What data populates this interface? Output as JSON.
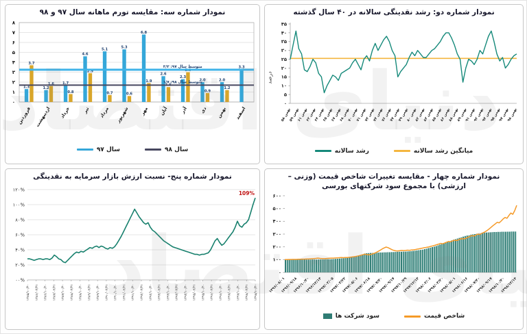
{
  "page": {
    "watermark": "دنیای اقتصاد"
  },
  "chart_data": [
    {
      "id": "inflation",
      "type": "bar",
      "title": "نمودار شماره سه: مقایسه تورم ماهانه سال ۹۷ و ۹۸",
      "categories": [
        "فروردین",
        "اردیبهشت",
        "خرداد",
        "تیر",
        "مرداد",
        "شهریور",
        "مهر",
        "آبان",
        "آذر",
        "دی",
        "بهمن",
        "اسفند"
      ],
      "series": [
        {
          "name": "سال ۹۷",
          "color": "#35a7d9",
          "values": [
            1.3,
            1.2,
            1.7,
            4.6,
            5.1,
            5.3,
            6.8,
            2.6,
            2.3,
            2.0,
            2.0,
            3.3
          ],
          "labels": [
            "1.3",
            "1.2",
            "1.7",
            "4.6",
            "5.1",
            "5.3",
            "6.8",
            "2.6",
            "2.3",
            "2.0",
            "2.0",
            "3.3"
          ]
        },
        {
          "name": "سال ۹۸",
          "color": "#d9a62a",
          "values": [
            3.7,
            1.6,
            0.8,
            2.9,
            0.7,
            0.6,
            1.9,
            1.5,
            3.0,
            0.9,
            1.2,
            null
          ],
          "labels": [
            "3.7",
            "1.6",
            "0.8",
            "2.9",
            "0.7",
            "0.6",
            "1.9",
            "1.5",
            "3.0",
            "0.9",
            "1.2",
            null
          ]
        }
      ],
      "avg_lines": [
        {
          "label": "متوسط سال ۹۷: ۳/۳",
          "value": 3.25,
          "color": "#3fb3e8"
        },
        {
          "label": "متوسط سال ۹۸: ۱/۷",
          "value": 1.7,
          "color": "#47475f"
        }
      ],
      "ylim": [
        0,
        8
      ],
      "y_tick_labels": [
        "۰",
        "۱",
        "۲",
        "۳",
        "۴",
        "۵",
        "۶",
        "۷",
        "۸"
      ],
      "legend": [
        {
          "label": "سال ۹۷",
          "color": "#35a7d9",
          "marker": "line"
        },
        {
          "label": "سال ۹۸",
          "color": "#47475f",
          "marker": "line"
        }
      ]
    },
    {
      "id": "liquidity_growth",
      "type": "line",
      "title": "نمودار شماره دو: رشد نقدینگی سالانه در ۴۰ سال گذشته",
      "ylabel": "درصد",
      "color": "#15897a",
      "mean": 25.5,
      "mean_color": "#f4b63f",
      "ylim": [
        0,
        45
      ],
      "y_tick_labels": [
        "۰",
        "۵",
        "۱۰",
        "۱۵",
        "۲۰",
        "۲۵",
        "۳۰",
        "۳۵",
        "۴۰",
        "۴۵"
      ],
      "x_labels": [
        "بهمن ۵۸",
        "بهمن ۵۹",
        "بهمن ۶۱",
        "بهمن ۶۲",
        "بهمن ۶۴",
        "بهمن ۶۵",
        "بهمن ۶۷",
        "بهمن ۶۸",
        "بهمن ۷۰",
        "بهمن ۷۱",
        "بهمن ۷۳",
        "بهمن ۷۴",
        "بهمن ۷۶",
        "بهمن ۷۷",
        "بهمن ۷۹",
        "بهمن ۸۰",
        "بهمن ۸۲",
        "بهمن ۸۳",
        "بهمن ۸۵",
        "بهمن ۸۶",
        "بهمن ۸۸",
        "بهمن ۸۹",
        "بهمن ۹۱",
        "بهمن ۹۲",
        "بهمن ۹۴",
        "بهمن ۹۵",
        "بهمن ۹۷",
        "بهمن ۹۸"
      ],
      "values": [
        25,
        33,
        41,
        31,
        28,
        19,
        18,
        21,
        25,
        23,
        17,
        15,
        6,
        10,
        13,
        16,
        15,
        13,
        17,
        18,
        19,
        20,
        23,
        25,
        22,
        19,
        25,
        27,
        24,
        30,
        34,
        30,
        33,
        36,
        38,
        35,
        30,
        27,
        15,
        18,
        20,
        22,
        26,
        29,
        27,
        30,
        28,
        26,
        26,
        28,
        30,
        31,
        33,
        35,
        38,
        40,
        40,
        37,
        33,
        28,
        25,
        12,
        20,
        25,
        24,
        22,
        25,
        30,
        28,
        33,
        38,
        41,
        35,
        28,
        24,
        26,
        20,
        22,
        25,
        27,
        28
      ],
      "legend": [
        {
          "label": "رشد سالانه",
          "color": "#15897a",
          "marker": "line"
        },
        {
          "label": "میانگین رشد سالانه",
          "color": "#f4b63f",
          "marker": "line"
        }
      ]
    },
    {
      "id": "market_value_to_liquidity",
      "type": "line",
      "title": "نمودار شماره پنج- نسبت ارزش بازار سرمایه به نقدینگی",
      "color": "#17806d",
      "ylim": [
        0,
        120
      ],
      "y_tick_labels": [
        "۰۰%",
        "۲۰%",
        "۴۰%",
        "۶۰%",
        "۸۰%",
        "۱۰۰%",
        "۱۲۰%"
      ],
      "end_label": {
        "text": "109%",
        "color": "#c11212"
      },
      "x_labels": [
        "۱۳۸۵/۱۰/۳۰",
        "۱۳۸۶/۰۴/۳۱",
        "۱۳۸۶/۱۰/۳۰",
        "۱۳۸۷/۰۴/۳۱",
        "۱۳۸۷/۱۰/۳۰",
        "۱۳۸۸/۰۴/۳۱",
        "۱۳۸۸/۱۰/۳۰",
        "۱۳۸۹/۰۴/۳۱",
        "۱۳۸۹/۱۰/۳۰",
        "۱۳۹۰/۰۴/۳۱",
        "۱۳۹۰/۱۰/۳۰",
        "۱۳۹۱/۰۴/۳۱",
        "۱۳۹۱/۱۰/۳۰",
        "۱۳۹۲/۰۴/۳۱",
        "۱۳۹۲/۱۰/۳۰",
        "۱۳۹۳/۰۴/۳۱",
        "۱۳۹۳/۱۰/۳۰",
        "۱۳۹۴/۰۴/۳۱",
        "۱۳۹۴/۱۰/۳۰",
        "۱۳۹۵/۰۴/۳۱",
        "۱۳۹۵/۱۰/۳۰",
        "۱۳۹۶/۰۴/۳۱",
        "۱۳۹۶/۱۰/۳۰",
        "۱۳۹۷/۰۴/۳۱",
        "۱۳۹۷/۱۰/۳۰",
        "۱۳۹۸/۰۴/۳۱",
        "۱۳۹۸/۱۰/۳۰"
      ],
      "values": [
        28,
        28,
        27,
        26,
        27,
        28,
        28,
        27,
        28,
        28,
        27,
        29,
        33,
        31,
        28,
        27,
        24,
        23,
        26,
        29,
        32,
        35,
        37,
        36,
        38,
        37,
        39,
        41,
        43,
        42,
        44,
        45,
        43,
        45,
        44,
        42,
        41,
        43,
        42,
        44,
        48,
        53,
        58,
        64,
        70,
        76,
        82,
        88,
        94,
        89,
        84,
        80,
        76,
        74,
        76,
        70,
        66,
        64,
        61,
        58,
        55,
        52,
        50,
        48,
        46,
        44,
        43,
        42,
        41,
        40,
        39,
        38,
        37,
        36,
        35,
        34,
        34,
        33,
        34,
        34,
        35,
        36,
        40,
        46,
        52,
        55,
        50,
        46,
        48,
        52,
        56,
        60,
        64,
        70,
        78,
        72,
        70,
        74,
        76,
        80,
        90,
        100,
        109
      ]
    },
    {
      "id": "price_index_vs_profit",
      "type": "combo",
      "title": "نمودار شماره چهار - مقایسه تغییرات شاخص قیمت (وزنی –ارزشی) با مجموع سود شرکتهای بورسی",
      "ylim": [
        0,
        600
      ],
      "y_tick_labels": [
        "۰",
        "۱۰۰",
        "۲۰۰",
        "۳۰۰",
        "۴۰۰",
        "۵۰۰",
        "۶۰۰"
      ],
      "x_labels": [
        "۱۳۹۶/۰۸/۰۱",
        "۱۳۹۶/۰۹/۱۸",
        "۱۳۹۶/۱۰/۳۰",
        "۱۳۹۶/۱۲/۱۴",
        "۱۳۹۷/۰۲/۰۵",
        "۱۳۹۷/۰۳/۲۲",
        "۱۳۹۷/۰۵/۰۶",
        "۱۳۹۷/۰۶/۱۸",
        "۱۳۹۷/۰۷/۳۰",
        "۱۳۹۷/۰۹/۱۷",
        "۱۳۹۷/۱۰/۲۹",
        "۱۳۹۷/۱۲/۱۳",
        "۱۳۹۸/۰۲/۰۶",
        "۱۳۹۸/۰۳/۲۰",
        "۱۳۹۸/۰۵/۰۱",
        "۱۳۹۸/۰۶/۱۶",
        "۱۳۹۸/۰۷/۳۰",
        "۱۳۹۸/۰۹/۱۷",
        "۱۳۹۸/۱۰/۳۰",
        "۱۳۹۸/۱۲/۱۴"
      ],
      "bars": {
        "name": "سود شرکت ها",
        "color": "#2f7c74",
        "values": [
          100,
          100,
          99,
          100,
          100,
          100,
          100,
          99,
          100,
          100,
          101,
          100,
          100,
          100,
          101,
          101,
          100,
          101,
          101,
          102,
          102,
          103,
          103,
          103,
          104,
          105,
          106,
          107,
          108,
          110,
          111,
          112,
          114,
          116,
          118,
          120,
          122,
          126,
          130,
          135,
          142,
          148,
          150,
          151,
          152,
          152,
          153,
          153,
          155,
          156,
          156,
          157,
          157,
          158,
          158,
          159,
          159,
          160,
          161,
          162,
          162,
          163,
          163,
          164,
          165,
          166,
          168,
          170,
          172,
          174,
          176,
          178,
          182,
          186,
          190,
          194,
          198,
          202,
          206,
          212,
          218,
          224,
          228,
          232,
          238,
          244,
          250,
          256,
          260,
          265,
          270,
          275,
          280,
          285,
          288,
          290,
          295,
          298,
          300,
          302,
          304,
          305,
          308,
          310,
          312,
          313,
          314,
          315,
          316,
          316,
          317,
          317,
          318,
          318,
          318,
          319,
          319,
          320,
          320,
          320
        ]
      },
      "line": {
        "name": "شاخص قیمت",
        "color": "#f59a28",
        "values": [
          100,
          100,
          101,
          101,
          102,
          102,
          102,
          103,
          103,
          104,
          104,
          105,
          105,
          106,
          107,
          108,
          110,
          112,
          110,
          108,
          108,
          109,
          110,
          111,
          112,
          112,
          113,
          114,
          115,
          116,
          115,
          116,
          117,
          118,
          120,
          122,
          124,
          127,
          130,
          134,
          138,
          143,
          140,
          137,
          140,
          145,
          150,
          157,
          165,
          174,
          184,
          192,
          198,
          194,
          186,
          178,
          172,
          169,
          168,
          170,
          172,
          171,
          172,
          174,
          173,
          175,
          177,
          179,
          182,
          185,
          188,
          191,
          194,
          197,
          200,
          204,
          208,
          212,
          217,
          222,
          227,
          224,
          230,
          236,
          242,
          240,
          246,
          252,
          249,
          254,
          260,
          265,
          262,
          268,
          275,
          282,
          288,
          284,
          292,
          300,
          296,
          305,
          312,
          320,
          330,
          342,
          355,
          368,
          380,
          392,
          388,
          402,
          418,
          430,
          424,
          445,
          465,
          455,
          485,
          525
        ]
      },
      "legend": [
        {
          "label": "سود شرکت ها",
          "color": "#2f7c74",
          "marker": "box"
        },
        {
          "label": "شاخص قیمت",
          "color": "#f59a28",
          "marker": "line"
        }
      ]
    }
  ]
}
